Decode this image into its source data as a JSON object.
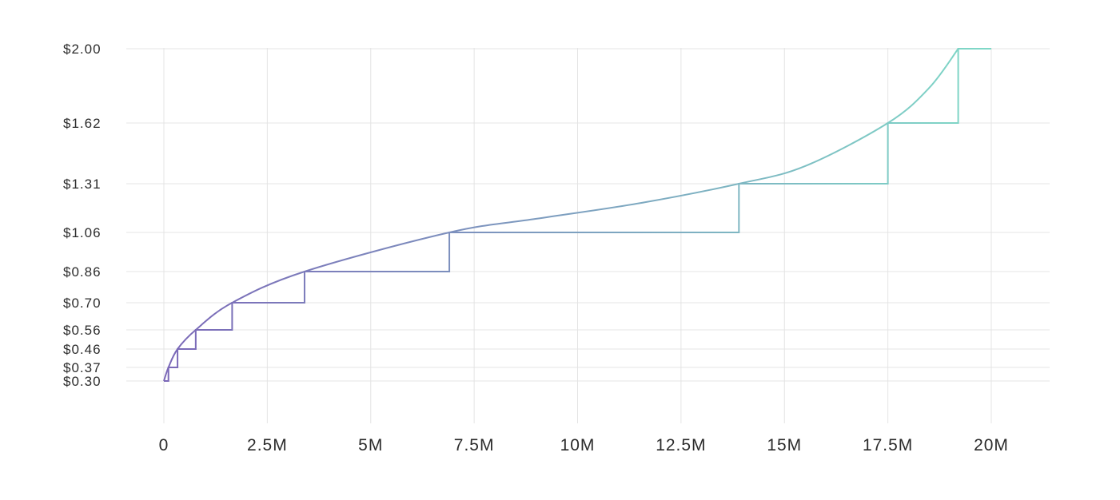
{
  "chart_data": {
    "type": "line",
    "title": "",
    "xlabel": "",
    "ylabel": "",
    "xlim": [
      0,
      20000000
    ],
    "ylim": [
      0.3,
      2.0
    ],
    "y_scale": "custom-ticked",
    "grid": true,
    "x_ticks": [
      {
        "value": 0,
        "label": "0"
      },
      {
        "value": 2500000,
        "label": "2.5M"
      },
      {
        "value": 5000000,
        "label": "5M"
      },
      {
        "value": 7500000,
        "label": "7.5M"
      },
      {
        "value": 10000000,
        "label": "10M"
      },
      {
        "value": 12500000,
        "label": "12.5M"
      },
      {
        "value": 15000000,
        "label": "15M"
      },
      {
        "value": 17500000,
        "label": "17.5M"
      },
      {
        "value": 20000000,
        "label": "20M"
      }
    ],
    "y_ticks": [
      {
        "value": 0.3,
        "label": "$0.30"
      },
      {
        "value": 0.37,
        "label": "$0.37"
      },
      {
        "value": 0.46,
        "label": "$0.46"
      },
      {
        "value": 0.56,
        "label": "$0.56"
      },
      {
        "value": 0.7,
        "label": "$0.70"
      },
      {
        "value": 0.86,
        "label": "$0.86"
      },
      {
        "value": 1.06,
        "label": "$1.06"
      },
      {
        "value": 1.31,
        "label": "$1.31"
      },
      {
        "value": 1.62,
        "label": "$1.62"
      },
      {
        "value": 2.0,
        "label": "$2.00"
      }
    ],
    "curve": {
      "x": [
        0,
        110000,
        330000,
        770000,
        1650000,
        3400000,
        6900000,
        9000000,
        11500000,
        13900000,
        15500000,
        17500000,
        18500000,
        19200000
      ],
      "y": [
        0.3,
        0.37,
        0.46,
        0.56,
        0.7,
        0.86,
        1.06,
        1.13,
        1.21,
        1.31,
        1.4,
        1.62,
        1.8,
        2.0
      ]
    },
    "steps": [
      {
        "x_start": 0,
        "x_end": 110000,
        "y": 0.3
      },
      {
        "x_start": 110000,
        "x_end": 330000,
        "y": 0.37
      },
      {
        "x_start": 330000,
        "x_end": 770000,
        "y": 0.46
      },
      {
        "x_start": 770000,
        "x_end": 1650000,
        "y": 0.56
      },
      {
        "x_start": 1650000,
        "x_end": 3400000,
        "y": 0.7
      },
      {
        "x_start": 3400000,
        "x_end": 6900000,
        "y": 0.86
      },
      {
        "x_start": 6900000,
        "x_end": 13900000,
        "y": 1.06
      },
      {
        "x_start": 13900000,
        "x_end": 17500000,
        "y": 1.31
      },
      {
        "x_start": 17500000,
        "x_end": 19200000,
        "y": 1.62
      },
      {
        "x_start": 19200000,
        "x_end": 20000000,
        "y": 2.0
      }
    ],
    "colors": {
      "gradient_start": "#7b68b8",
      "gradient_end": "#7fd9c7",
      "grid": "#e4e4e4",
      "text": "#2b2b2b"
    }
  }
}
